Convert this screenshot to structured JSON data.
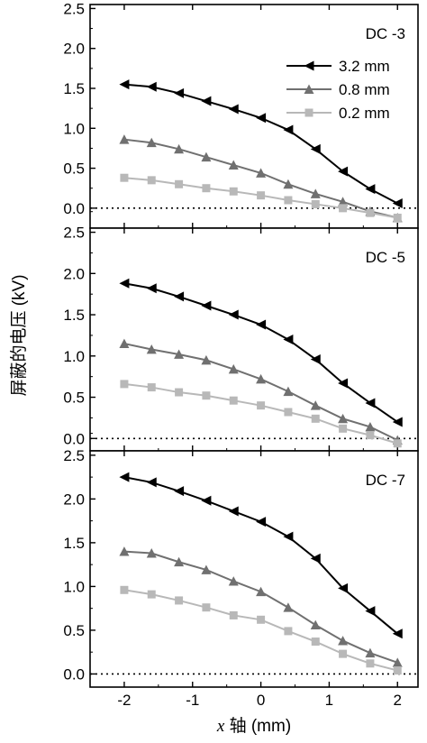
{
  "figure": {
    "xlabel_italic": "x",
    "xlabel_rest": " 轴 (mm)",
    "ylabel": "屏蔽的电压 (kV)",
    "legend_location": "top-right of top panel",
    "colors": {
      "3.2 mm": "#000000",
      "0.8 mm": "#707070",
      "0.2 mm": "#b8b8b8"
    }
  },
  "chart_data": [
    {
      "type": "line",
      "title": "DC -3",
      "xlim": [
        -2.5,
        2.3
      ],
      "ylim": [
        -0.25,
        2.55
      ],
      "xticks": [
        -2,
        -1,
        0,
        1,
        2
      ],
      "yticks": [
        0.0,
        0.5,
        1.0,
        1.5,
        2.0,
        2.5
      ],
      "zero_reference_line": "dotted",
      "series": [
        {
          "name": "3.2 mm",
          "marker": "triangle-left",
          "x": [
            -2,
            -1.6,
            -1.2,
            -0.8,
            -0.4,
            0,
            0.4,
            0.8,
            1.2,
            1.6,
            2
          ],
          "y": [
            1.55,
            1.52,
            1.44,
            1.34,
            1.24,
            1.13,
            0.98,
            0.74,
            0.46,
            0.24,
            0.06
          ]
        },
        {
          "name": "0.8 mm",
          "marker": "triangle-up",
          "x": [
            -2,
            -1.6,
            -1.2,
            -0.8,
            -0.4,
            0,
            0.4,
            0.8,
            1.2,
            1.6,
            2
          ],
          "y": [
            0.86,
            0.82,
            0.74,
            0.64,
            0.54,
            0.44,
            0.3,
            0.18,
            0.08,
            -0.04,
            -0.12
          ]
        },
        {
          "name": "0.2 mm",
          "marker": "square",
          "x": [
            -2,
            -1.6,
            -1.2,
            -0.8,
            -0.4,
            0,
            0.4,
            0.8,
            1.2,
            1.6,
            2
          ],
          "y": [
            0.38,
            0.35,
            0.3,
            0.25,
            0.21,
            0.16,
            0.1,
            0.05,
            0.0,
            -0.06,
            -0.12
          ]
        }
      ]
    },
    {
      "type": "line",
      "title": "DC -5",
      "xlim": [
        -2.5,
        2.3
      ],
      "ylim": [
        -0.15,
        2.55
      ],
      "xticks": [
        -2,
        -1,
        0,
        1,
        2
      ],
      "yticks": [
        0.0,
        0.5,
        1.0,
        1.5,
        2.0,
        2.5
      ],
      "zero_reference_line": "dotted",
      "series": [
        {
          "name": "3.2 mm",
          "marker": "triangle-left",
          "x": [
            -2,
            -1.6,
            -1.2,
            -0.8,
            -0.4,
            0,
            0.4,
            0.8,
            1.2,
            1.6,
            2
          ],
          "y": [
            1.88,
            1.82,
            1.72,
            1.61,
            1.5,
            1.38,
            1.2,
            0.96,
            0.67,
            0.43,
            0.2
          ]
        },
        {
          "name": "0.8 mm",
          "marker": "triangle-up",
          "x": [
            -2,
            -1.6,
            -1.2,
            -0.8,
            -0.4,
            0,
            0.4,
            0.8,
            1.2,
            1.6,
            2
          ],
          "y": [
            1.15,
            1.08,
            1.02,
            0.95,
            0.84,
            0.72,
            0.57,
            0.4,
            0.24,
            0.14,
            -0.02
          ]
        },
        {
          "name": "0.2 mm",
          "marker": "square",
          "x": [
            -2,
            -1.6,
            -1.2,
            -0.8,
            -0.4,
            0,
            0.4,
            0.8,
            1.2,
            1.6,
            2
          ],
          "y": [
            0.66,
            0.62,
            0.56,
            0.52,
            0.46,
            0.4,
            0.32,
            0.24,
            0.12,
            0.04,
            -0.06
          ]
        }
      ]
    },
    {
      "type": "line",
      "title": "DC -7",
      "xlim": [
        -2.5,
        2.3
      ],
      "ylim": [
        -0.15,
        2.55
      ],
      "xticks": [
        -2,
        -1,
        0,
        1,
        2
      ],
      "yticks": [
        0.0,
        0.5,
        1.0,
        1.5,
        2.0,
        2.5
      ],
      "zero_reference_line": "dotted",
      "series": [
        {
          "name": "3.2 mm",
          "marker": "triangle-left",
          "x": [
            -2,
            -1.6,
            -1.2,
            -0.8,
            -0.4,
            0,
            0.4,
            0.8,
            1.2,
            1.6,
            2
          ],
          "y": [
            2.25,
            2.19,
            2.09,
            1.98,
            1.86,
            1.74,
            1.57,
            1.32,
            0.98,
            0.72,
            0.46
          ]
        },
        {
          "name": "0.8 mm",
          "marker": "triangle-up",
          "x": [
            -2,
            -1.6,
            -1.2,
            -0.8,
            -0.4,
            0,
            0.4,
            0.8,
            1.2,
            1.6,
            2
          ],
          "y": [
            1.4,
            1.38,
            1.28,
            1.19,
            1.06,
            0.94,
            0.76,
            0.56,
            0.38,
            0.24,
            0.13
          ]
        },
        {
          "name": "0.2 mm",
          "marker": "square",
          "x": [
            -2,
            -1.6,
            -1.2,
            -0.8,
            -0.4,
            0,
            0.4,
            0.8,
            1.2,
            1.6,
            2
          ],
          "y": [
            0.96,
            0.91,
            0.84,
            0.76,
            0.67,
            0.62,
            0.49,
            0.37,
            0.23,
            0.12,
            0.04
          ]
        }
      ]
    }
  ]
}
